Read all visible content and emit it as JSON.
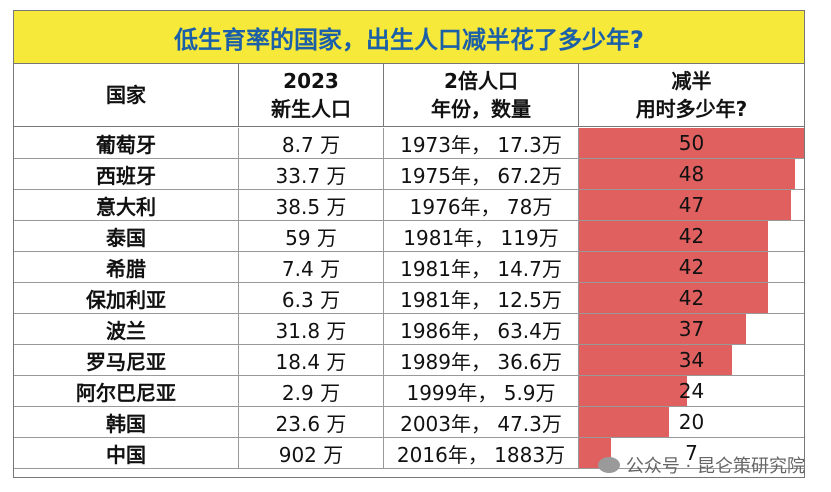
{
  "title": "低生育率的国家，出生人口减半花了多少年?",
  "headers": {
    "country": [
      "国家"
    ],
    "births": [
      "2023",
      "新生人口"
    ],
    "double": [
      "2倍人口",
      "年份，数量"
    ],
    "halving": [
      "减半",
      "用时多少年?"
    ]
  },
  "watermark": "公众号 · 昆仑策研究院",
  "chart_data": {
    "type": "bar",
    "categories": [
      "葡萄牙",
      "西班牙",
      "意大利",
      "泰国",
      "希腊",
      "保加利亚",
      "波兰",
      "罗马尼亚",
      "阿尔巴尼亚",
      "韩国",
      "中国"
    ],
    "births_2023": [
      "8.7 万",
      "33.7 万",
      "38.5 万",
      "59 万",
      "7.4 万",
      "6.3 万",
      "31.8 万",
      "18.4 万",
      "2.9 万",
      "23.6 万",
      "902 万"
    ],
    "double_year_count": [
      "1973年， 17.3万",
      "1975年， 67.2万",
      "1976年， 78万",
      "1981年， 119万",
      "1981年， 14.7万",
      "1981年， 12.5万",
      "1986年， 63.4万",
      "1989年， 36.6万",
      "1999年， 5.9万",
      "2003年， 47.3万",
      "2016年， 1883万"
    ],
    "values": [
      50,
      48,
      47,
      42,
      42,
      42,
      37,
      34,
      24,
      20,
      7
    ],
    "xlim": [
      0,
      50
    ],
    "colors": {
      "bar": "#e06060",
      "title_bg": "#f7e93a",
      "title_text": "#1a5fa8"
    }
  }
}
